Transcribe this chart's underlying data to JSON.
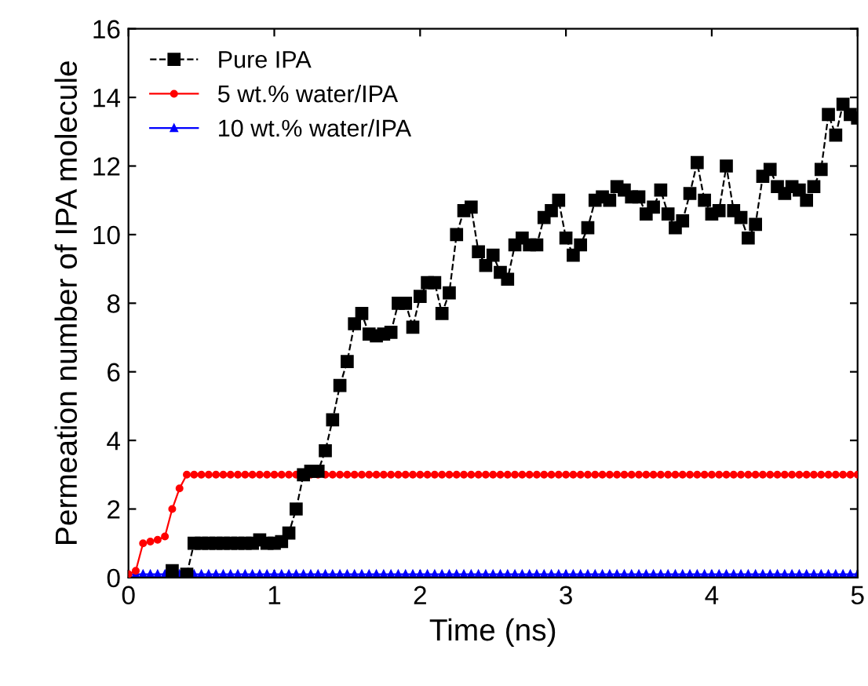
{
  "chart_data": {
    "type": "line",
    "xlabel": "Time (ns)",
    "ylabel": "Permeation number of IPA molecule",
    "x": [
      0,
      0.05,
      0.1,
      0.15,
      0.2,
      0.25,
      0.3,
      0.35,
      0.4,
      0.45,
      0.5,
      0.55,
      0.6,
      0.65,
      0.7,
      0.75,
      0.8,
      0.85,
      0.9,
      0.95,
      1,
      1.05,
      1.1,
      1.15,
      1.2,
      1.25,
      1.3,
      1.35,
      1.4,
      1.45,
      1.5,
      1.55,
      1.6,
      1.65,
      1.7,
      1.75,
      1.8,
      1.85,
      1.9,
      1.95,
      2,
      2.05,
      2.1,
      2.15,
      2.2,
      2.25,
      2.3,
      2.35,
      2.4,
      2.45,
      2.5,
      2.55,
      2.6,
      2.65,
      2.7,
      2.75,
      2.8,
      2.85,
      2.9,
      2.95,
      3,
      3.05,
      3.1,
      3.15,
      3.2,
      3.25,
      3.3,
      3.35,
      3.4,
      3.45,
      3.5,
      3.55,
      3.6,
      3.65,
      3.7,
      3.75,
      3.8,
      3.85,
      3.9,
      3.95,
      4,
      4.05,
      4.1,
      4.15,
      4.2,
      4.25,
      4.3,
      4.35,
      4.4,
      4.45,
      4.5,
      4.55,
      4.6,
      4.65,
      4.7,
      4.75,
      4.8,
      4.85,
      4.9,
      4.95,
      5
    ],
    "series": [
      {
        "name": "Pure IPA",
        "color": "#000000",
        "marker": "square",
        "line_style": "dashed",
        "values": [
          null,
          null,
          null,
          null,
          null,
          null,
          0.2,
          null,
          0.1,
          1.0,
          1.0,
          1.0,
          1.0,
          1.0,
          1.0,
          1.0,
          1.0,
          1.0,
          1.1,
          1.0,
          1.0,
          1.05,
          1.3,
          2.0,
          3.0,
          3.1,
          3.1,
          3.7,
          4.6,
          5.6,
          6.3,
          7.4,
          7.7,
          7.1,
          7.05,
          7.1,
          7.15,
          8.0,
          8.0,
          7.3,
          8.2,
          8.6,
          8.6,
          7.7,
          8.3,
          10.0,
          10.7,
          10.8,
          9.5,
          9.1,
          9.4,
          8.9,
          8.7,
          9.7,
          9.9,
          9.7,
          9.7,
          10.5,
          10.7,
          11.0,
          9.9,
          9.4,
          9.7,
          10.2,
          11.0,
          11.1,
          11.0,
          11.4,
          11.3,
          11.1,
          11.1,
          10.6,
          10.8,
          11.3,
          10.6,
          10.2,
          10.4,
          11.2,
          12.1,
          11.0,
          10.6,
          10.7,
          12.0,
          10.7,
          10.5,
          9.9,
          10.3,
          11.7,
          11.9,
          11.4,
          11.2,
          11.4,
          11.3,
          11.0,
          11.4,
          11.9,
          13.5,
          12.9,
          13.8,
          13.5,
          13.4
        ]
      },
      {
        "name": "5 wt.% water/IPA",
        "color": "#ff0000",
        "marker": "circle",
        "line_style": "solid",
        "values": [
          0.1,
          0.2,
          1.0,
          1.05,
          1.1,
          1.2,
          2.0,
          2.6,
          3.0,
          3.0,
          3.0,
          3.0,
          3.0,
          3.0,
          3.0,
          3.0,
          3.0,
          3.0,
          3.0,
          3.0,
          3.0,
          3.0,
          3.0,
          3.0,
          3.0,
          3.0,
          3.0,
          3.0,
          3.0,
          3.0,
          3.0,
          3.0,
          3.0,
          3.0,
          3.0,
          3.0,
          3.0,
          3.0,
          3.0,
          3.0,
          3.0,
          3.0,
          3.0,
          3.0,
          3.0,
          3.0,
          3.0,
          3.0,
          3.0,
          3.0,
          3.0,
          3.0,
          3.0,
          3.0,
          3.0,
          3.0,
          3.0,
          3.0,
          3.0,
          3.0,
          3.0,
          3.0,
          3.0,
          3.0,
          3.0,
          3.0,
          3.0,
          3.0,
          3.0,
          3.0,
          3.0,
          3.0,
          3.0,
          3.0,
          3.0,
          3.0,
          3.0,
          3.0,
          3.0,
          3.0,
          3.0,
          3.0,
          3.0,
          3.0,
          3.0,
          3.0,
          3.0,
          3.0,
          3.0,
          3.0,
          3.0,
          3.0,
          3.0,
          3.0,
          3.0,
          3.0,
          3.0,
          3.0,
          3.0,
          3.0,
          3.0
        ]
      },
      {
        "name": "10 wt.% water/IPA",
        "color": "#0000ff",
        "marker": "triangle",
        "line_style": "solid",
        "values": [
          0.1,
          0.1,
          0.1,
          0.1,
          0.1,
          0.1,
          0.1,
          0.1,
          0.1,
          0.1,
          0.1,
          0.1,
          0.1,
          0.1,
          0.1,
          0.1,
          0.1,
          0.1,
          0.1,
          0.1,
          0.1,
          0.1,
          0.1,
          0.1,
          0.1,
          0.1,
          0.1,
          0.1,
          0.1,
          0.1,
          0.1,
          0.1,
          0.1,
          0.1,
          0.1,
          0.1,
          0.1,
          0.1,
          0.1,
          0.1,
          0.1,
          0.1,
          0.1,
          0.1,
          0.1,
          0.1,
          0.1,
          0.1,
          0.1,
          0.1,
          0.1,
          0.1,
          0.1,
          0.1,
          0.1,
          0.1,
          0.1,
          0.1,
          0.1,
          0.1,
          0.1,
          0.1,
          0.1,
          0.1,
          0.1,
          0.1,
          0.1,
          0.1,
          0.1,
          0.1,
          0.1,
          0.1,
          0.1,
          0.1,
          0.1,
          0.1,
          0.1,
          0.1,
          0.1,
          0.1,
          0.1,
          0.1,
          0.1,
          0.1,
          0.1,
          0.1,
          0.1,
          0.1,
          0.1,
          0.1,
          0.1,
          0.1,
          0.1,
          0.1,
          0.1,
          0.1,
          0.1,
          0.1,
          0.1,
          0.1,
          0.1
        ]
      }
    ],
    "xlim": [
      0,
      5
    ],
    "ylim": [
      0,
      16
    ],
    "xticks": [
      0,
      1,
      2,
      3,
      4,
      5
    ],
    "yticks": [
      0,
      2,
      4,
      6,
      8,
      10,
      12,
      14,
      16
    ],
    "grid": false,
    "legend": "top left"
  }
}
